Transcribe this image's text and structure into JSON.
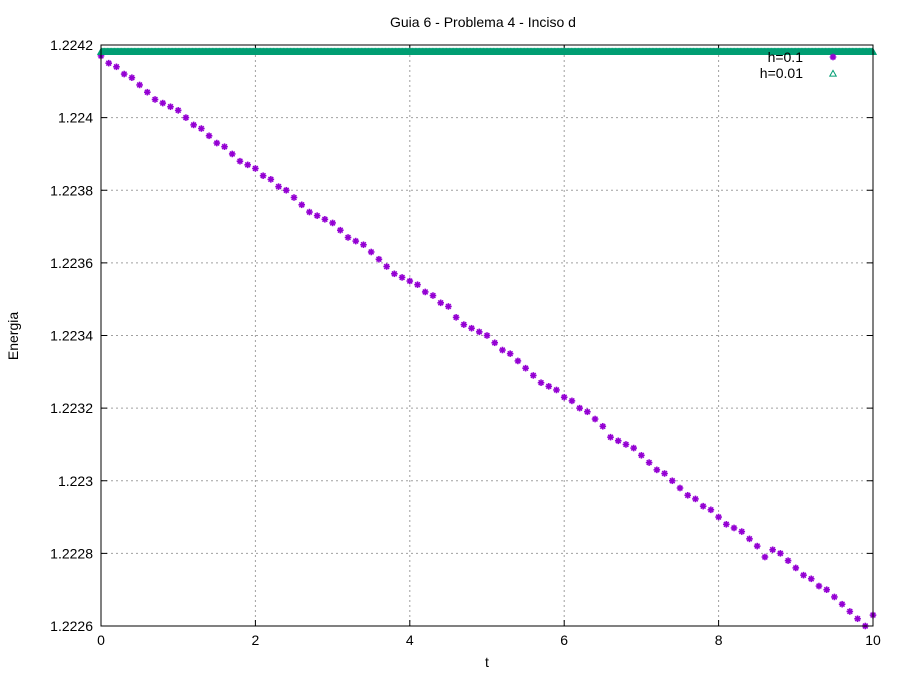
{
  "chart_data": {
    "type": "scatter",
    "title": "Guia 6 - Problema 4 - Inciso d",
    "xlabel": "t",
    "ylabel": "Energia",
    "xlim": [
      0,
      10
    ],
    "ylim": [
      1.2226,
      1.2242
    ],
    "xticks": [
      0,
      2,
      4,
      6,
      8,
      10
    ],
    "xtick_labels": [
      "0",
      "2",
      "4",
      "6",
      "8",
      "10"
    ],
    "yticks": [
      1.2226,
      1.2228,
      1.223,
      1.2232,
      1.2234,
      1.2236,
      1.2238,
      1.224,
      1.2242
    ],
    "ytick_labels": [
      "1.2226",
      "1.2228",
      "1.223",
      "1.2232",
      "1.2234",
      "1.2236",
      "1.2238",
      "1.224",
      "1.2242"
    ],
    "grid": true,
    "legend_position": "top-right",
    "series": [
      {
        "name": "h=0.1",
        "color": "#9400d3",
        "marker": "asterisk",
        "x_start": 0,
        "x_step": 0.1,
        "count": 101,
        "values": [
          1.22417,
          1.22415,
          1.22414,
          1.22412,
          1.22411,
          1.22409,
          1.22407,
          1.22405,
          1.22404,
          1.22403,
          1.22402,
          1.224,
          1.22398,
          1.22397,
          1.22395,
          1.22393,
          1.22392,
          1.2239,
          1.22388,
          1.22387,
          1.22386,
          1.22384,
          1.22383,
          1.22381,
          1.2238,
          1.22378,
          1.22376,
          1.22374,
          1.22373,
          1.22372,
          1.22371,
          1.22369,
          1.22367,
          1.22366,
          1.22365,
          1.22363,
          1.22361,
          1.22359,
          1.22357,
          1.22356,
          1.22355,
          1.22354,
          1.22352,
          1.22351,
          1.22349,
          1.22348,
          1.22345,
          1.22343,
          1.22342,
          1.22341,
          1.2234,
          1.22338,
          1.22336,
          1.22335,
          1.22333,
          1.22331,
          1.22329,
          1.22327,
          1.22326,
          1.22325,
          1.22323,
          1.22322,
          1.2232,
          1.22319,
          1.22317,
          1.22315,
          1.22312,
          1.22311,
          1.2231,
          1.22309,
          1.22307,
          1.22305,
          1.22303,
          1.22302,
          1.223,
          1.22298,
          1.22296,
          1.22295,
          1.22293,
          1.22292,
          1.2229,
          1.22288,
          1.22287,
          1.22286,
          1.22284,
          1.22282,
          1.22279,
          1.22281,
          1.2228,
          1.22278,
          1.22276,
          1.22274,
          1.22273,
          1.22271,
          1.2227,
          1.22268,
          1.22266,
          1.22264,
          1.22262,
          1.2226,
          1.22263
        ]
      },
      {
        "name": "h=0.01",
        "color": "#009e73",
        "marker": "triangle",
        "x_start": 0,
        "x_step": 0.01,
        "count": 1001,
        "constant_value": 1.22418
      }
    ]
  }
}
